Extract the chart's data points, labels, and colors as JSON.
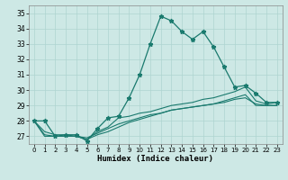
{
  "xlabel": "Humidex (Indice chaleur)",
  "bg_color": "#cde8e5",
  "line_color": "#1a7a6e",
  "grid_color": "#aed4d0",
  "xlim": [
    -0.5,
    23.5
  ],
  "ylim": [
    26.5,
    35.5
  ],
  "xticks": [
    0,
    1,
    2,
    3,
    4,
    5,
    6,
    7,
    8,
    9,
    10,
    11,
    12,
    13,
    14,
    15,
    16,
    17,
    18,
    19,
    20,
    21,
    22,
    23
  ],
  "yticks": [
    27,
    28,
    29,
    30,
    31,
    32,
    33,
    34,
    35
  ],
  "series1_x": [
    0,
    1,
    2,
    3,
    4,
    5,
    6,
    7,
    8,
    9,
    10,
    11,
    12,
    13,
    14,
    15,
    16,
    17,
    18,
    19,
    20,
    21,
    22,
    23
  ],
  "series1_y": [
    28.0,
    28.0,
    27.0,
    27.1,
    27.1,
    26.7,
    27.5,
    28.2,
    28.3,
    29.5,
    31.0,
    33.0,
    34.8,
    34.5,
    33.8,
    33.3,
    33.8,
    32.8,
    31.5,
    30.2,
    30.3,
    29.8,
    29.2,
    29.2
  ],
  "series2_x": [
    0,
    1,
    2,
    3,
    4,
    5,
    6,
    7,
    8,
    9,
    10,
    11,
    12,
    13,
    14,
    15,
    16,
    17,
    18,
    19,
    20,
    21,
    22,
    23
  ],
  "series2_y": [
    28.0,
    27.3,
    27.1,
    27.1,
    27.0,
    26.8,
    27.3,
    27.6,
    28.2,
    28.3,
    28.5,
    28.6,
    28.8,
    29.0,
    29.1,
    29.2,
    29.4,
    29.5,
    29.7,
    29.9,
    30.2,
    29.3,
    29.1,
    29.2
  ],
  "series3_x": [
    0,
    1,
    2,
    3,
    4,
    5,
    6,
    7,
    8,
    9,
    10,
    11,
    12,
    13,
    14,
    15,
    16,
    17,
    18,
    19,
    20,
    21,
    22,
    23
  ],
  "series3_y": [
    28.0,
    27.1,
    27.0,
    27.0,
    27.0,
    26.9,
    27.2,
    27.5,
    27.8,
    28.0,
    28.2,
    28.4,
    28.5,
    28.7,
    28.8,
    28.9,
    29.0,
    29.1,
    29.2,
    29.4,
    29.5,
    29.1,
    29.0,
    29.0
  ],
  "series4_x": [
    0,
    1,
    2,
    3,
    4,
    5,
    6,
    7,
    8,
    9,
    10,
    11,
    12,
    13,
    14,
    15,
    16,
    17,
    18,
    19,
    20,
    21,
    22,
    23
  ],
  "series4_y": [
    28.0,
    27.0,
    27.0,
    27.0,
    27.0,
    26.8,
    27.1,
    27.3,
    27.6,
    27.9,
    28.1,
    28.3,
    28.5,
    28.7,
    28.8,
    28.9,
    29.0,
    29.1,
    29.3,
    29.5,
    29.7,
    29.0,
    29.0,
    29.0
  ]
}
